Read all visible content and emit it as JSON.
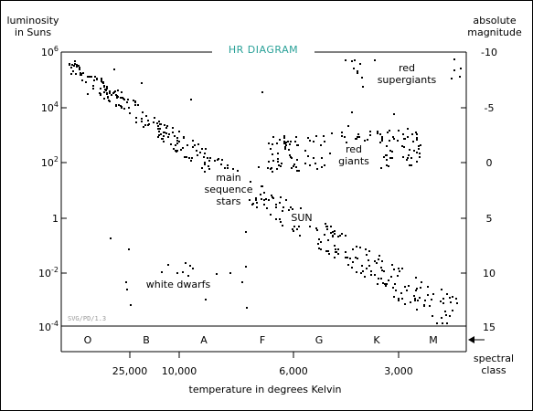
{
  "title": "HR DIAGRAM",
  "watermark": "SVG/PD/1.3",
  "left_axis": {
    "label_line1": "luminosity",
    "label_line2": "in Suns",
    "ticks": [
      {
        "base": "10",
        "exp": "6"
      },
      {
        "base": "10",
        "exp": "4"
      },
      {
        "base": "10",
        "exp": "2"
      },
      {
        "base": "1",
        "exp": ""
      },
      {
        "base": "10",
        "exp": "-2"
      },
      {
        "base": "10",
        "exp": "-4"
      }
    ]
  },
  "right_axis": {
    "label_line1": "absolute",
    "label_line2": "magnitude",
    "ticks": [
      "-10",
      "-5",
      "0",
      "5",
      "10",
      "15"
    ]
  },
  "spectral_classes": [
    "O",
    "B",
    "A",
    "F",
    "G",
    "K",
    "M"
  ],
  "spectral_label_line1": "spectral",
  "spectral_label_line2": "class",
  "temperature_ticks": [
    "25,000",
    "10,000",
    "6,000",
    "3,000"
  ],
  "x_axis_label": "temperature in degrees Kelvin",
  "annotations": {
    "red_supergiants_line1": "red",
    "red_supergiants_line2": "supergiants",
    "red_giants_line1": "red",
    "red_giants_line2": "giants",
    "main_sequence_line1": "main",
    "main_sequence_line2": "sequence",
    "main_sequence_line3": "stars",
    "sun": "SUN",
    "white_dwarfs": "white dwarfs"
  },
  "colors": {
    "title": "#2aa198",
    "watermark": "#9a9a9a",
    "ink": "#000000"
  }
}
